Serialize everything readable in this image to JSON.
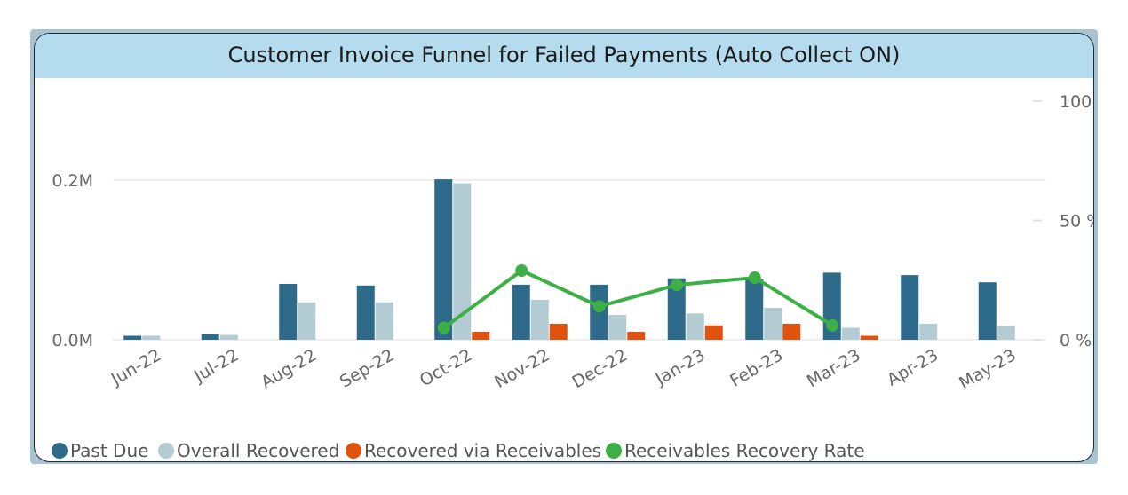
{
  "header": {
    "title": "Customer Invoice Funnel for Failed Payments (Auto Collect ON)"
  },
  "colors": {
    "past_due": "#2e6a8a",
    "overall_recovered": "#b3cbd3",
    "recovered_receivables": "#e0530f",
    "recovery_rate": "#3cb044",
    "gridline": "#eeeeee",
    "title_bg": "#b4dcee"
  },
  "chart_data": {
    "type": "bar",
    "categories": [
      "Jun-22",
      "Jul-22",
      "Aug-22",
      "Sep-22",
      "Oct-22",
      "Nov-22",
      "Dec-22",
      "Jan-23",
      "Feb-23",
      "Mar-23",
      "Apr-23",
      "May-23"
    ],
    "series": [
      {
        "name": "Past Due",
        "axis": "left",
        "values": [
          0.005,
          0.007,
          0.07,
          0.068,
          0.201,
          0.069,
          0.069,
          0.077,
          0.076,
          0.084,
          0.081,
          0.072
        ]
      },
      {
        "name": "Overall Recovered",
        "axis": "left",
        "values": [
          0.005,
          0.006,
          0.047,
          0.047,
          0.196,
          0.05,
          0.031,
          0.033,
          0.04,
          0.015,
          0.02,
          0.017
        ]
      },
      {
        "name": "Recovered via Receivables",
        "axis": "left",
        "values": [
          null,
          null,
          null,
          null,
          0.01,
          0.02,
          0.01,
          0.018,
          0.02,
          0.005,
          null,
          null
        ]
      },
      {
        "name": "Receivables Recovery Rate",
        "type": "line",
        "axis": "right",
        "values": [
          null,
          null,
          null,
          null,
          5,
          29,
          14,
          23,
          26,
          6,
          null,
          null
        ]
      }
    ],
    "left_axis": {
      "ticks": [
        "0.0M",
        "0.2M"
      ],
      "tick_values": [
        0,
        0.2
      ],
      "range": [
        0,
        0.3
      ],
      "unit": "M"
    },
    "right_axis": {
      "ticks": [
        "0 %",
        "50 %",
        "100 %"
      ],
      "tick_values": [
        0,
        50,
        100
      ],
      "range": [
        0,
        100
      ]
    },
    "legend": {
      "position": "bottom-left",
      "entries": [
        "Past Due",
        "Overall Recovered",
        "Recovered via Receivables",
        "Receivables Recovery Rate"
      ]
    },
    "grid": true
  }
}
